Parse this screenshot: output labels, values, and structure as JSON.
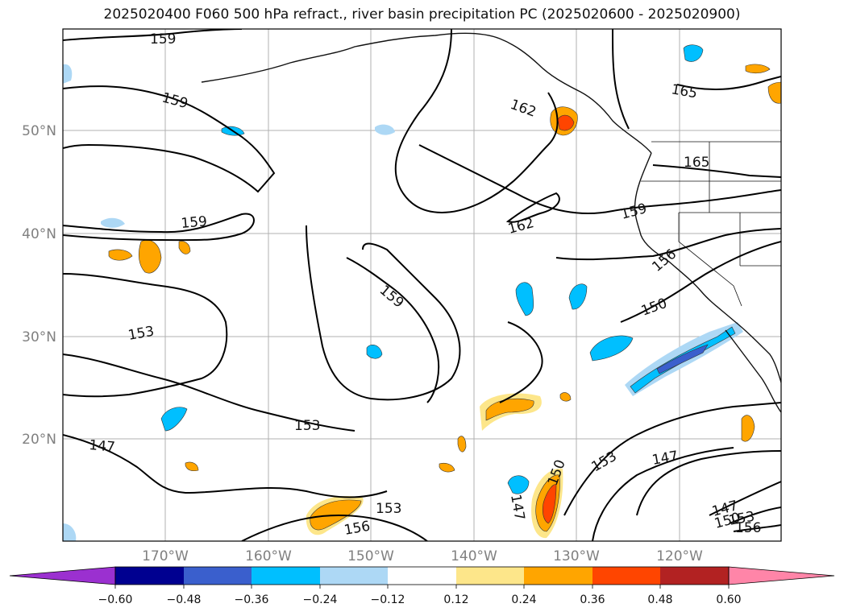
{
  "title": "2025020400 F060 500 hPa refract., river basin precipitation PC (2025020600 - 2025020900)",
  "latitude_labels": [
    "50°N",
    "40°N",
    "30°N",
    "20°N"
  ],
  "longitude_labels": [
    "170°W",
    "160°W",
    "150°W",
    "140°W",
    "130°W",
    "120°W"
  ],
  "contour_labels": [
    "159",
    "159",
    "162",
    "165",
    "165",
    "159",
    "162",
    "159",
    "156",
    "159",
    "150",
    "153",
    "153",
    "147",
    "153",
    "156",
    "147",
    "150",
    "153",
    "147",
    "147",
    "150",
    "153",
    "156"
  ],
  "colorbar": {
    "ticks": [
      "−0.60",
      "−0.48",
      "−0.36",
      "−0.24",
      "−0.12",
      "0.12",
      "0.24",
      "0.36",
      "0.48",
      "0.60"
    ],
    "colors": [
      "#9b30d0",
      "#000090",
      "#3a5fcd",
      "#00bfff",
      "#add8f5",
      "#ffffff",
      "#fde68a",
      "#ffa500",
      "#ff4500",
      "#b22222",
      "#ff85a8"
    ]
  }
}
